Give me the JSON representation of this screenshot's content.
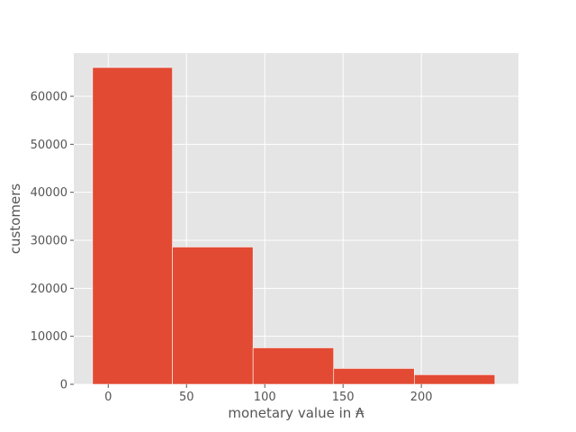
{
  "chart_data": {
    "type": "bar",
    "title": "",
    "xlabel": "monetary value in ₳",
    "ylabel": "customers",
    "bins": [
      {
        "start": -10,
        "end": 41,
        "value": 66000
      },
      {
        "start": 41,
        "end": 92.5,
        "value": 28600
      },
      {
        "start": 92.5,
        "end": 144,
        "value": 7600
      },
      {
        "start": 144,
        "end": 195.5,
        "value": 3300
      },
      {
        "start": 195.5,
        "end": 247,
        "value": 2000
      }
    ],
    "xlim": [
      -22,
      262
    ],
    "ylim": [
      0,
      69000
    ],
    "xticks": [
      0,
      50,
      100,
      150,
      200
    ],
    "yticks": [
      0,
      10000,
      20000,
      30000,
      40000,
      50000,
      60000
    ],
    "grid": true,
    "colors": {
      "bar": "#E24A33",
      "plot_background": "#E5E5E5",
      "grid": "#FFFFFF",
      "text": "#555555"
    }
  }
}
